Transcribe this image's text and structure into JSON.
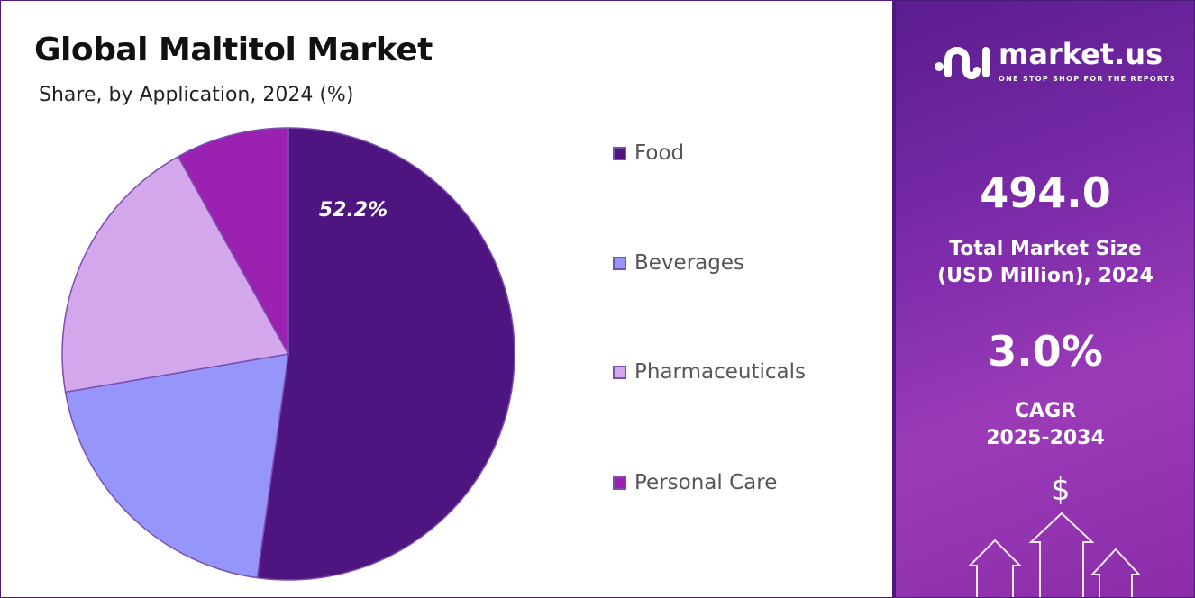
{
  "chart_data": {
    "type": "pie",
    "title": "Global Maltitol Market",
    "subtitle": "Share, by Application, 2024 (%)",
    "categories": [
      "Food",
      "Beverages",
      "Pharmaceuticals",
      "Personal Care"
    ],
    "values": [
      52.2,
      20.1,
      19.6,
      8.1
    ],
    "colors": [
      "#4e1580",
      "#9696fa",
      "#d4a6ec",
      "#9b22b0"
    ],
    "data_labels": [
      "52.2%"
    ],
    "legend_placement": "right"
  },
  "brand": {
    "name": "market.us",
    "tagline": "ONE STOP SHOP FOR THE REPORTS"
  },
  "stats": {
    "market_size": "494.0",
    "market_size_label_1": "Total Market Size",
    "market_size_label_2": "(USD Million), 2024",
    "cagr": "3.0%",
    "cagr_label_1": "CAGR",
    "cagr_label_2": "2025-2034"
  },
  "icons": {
    "dollar": "$"
  }
}
